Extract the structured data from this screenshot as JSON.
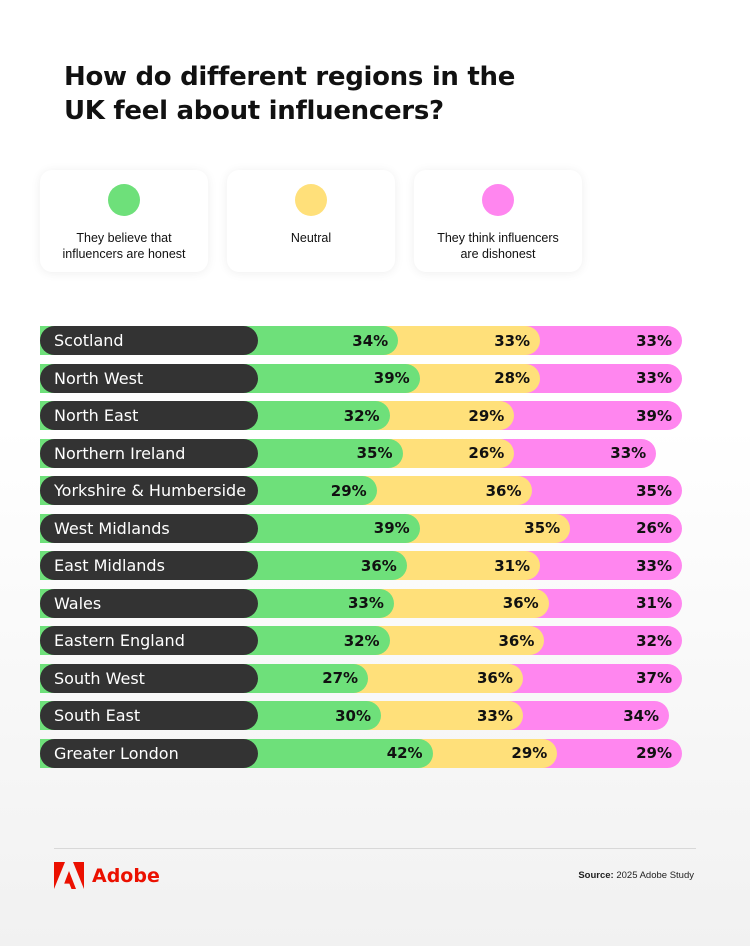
{
  "title": "How do different regions in the UK feel about influencers?",
  "legend": [
    {
      "key": "honest",
      "label": "They believe that\ninfluencers are honest",
      "color": "#6ee07a"
    },
    {
      "key": "neutral",
      "label": "Neutral",
      "color": "#ffe07a"
    },
    {
      "key": "dishonest",
      "label": "They think influencers\nare dishonest",
      "color": "#ff86ef"
    }
  ],
  "chart_data": {
    "type": "bar",
    "stacked": true,
    "orientation": "horizontal",
    "categories": [
      "Scotland",
      "North West",
      "North East",
      "Northern Ireland",
      "Yorkshire & Humberside",
      "West Midlands",
      "East Midlands",
      "Wales",
      "Eastern England",
      "South West",
      "South East",
      "Greater London"
    ],
    "series": [
      {
        "name": "They believe that influencers are honest",
        "color": "#6ee07a",
        "values": [
          34,
          39,
          32,
          35,
          29,
          39,
          36,
          33,
          32,
          27,
          30,
          42
        ]
      },
      {
        "name": "Neutral",
        "color": "#ffe07a",
        "values": [
          33,
          28,
          29,
          26,
          36,
          35,
          31,
          36,
          36,
          36,
          33,
          29
        ]
      },
      {
        "name": "They think influencers are dishonest",
        "color": "#ff86ef",
        "values": [
          33,
          33,
          39,
          33,
          35,
          26,
          33,
          31,
          32,
          37,
          34,
          29
        ]
      }
    ],
    "value_suffix": "%"
  },
  "footer": {
    "brand": "Adobe",
    "brand_color": "#eb1000",
    "source_label": "Source:",
    "source_text": "2025 Adobe Study"
  }
}
